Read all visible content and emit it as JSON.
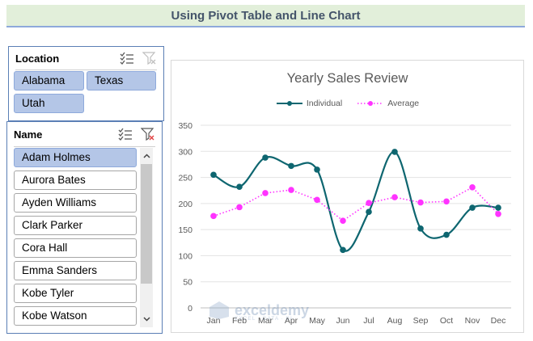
{
  "banner": {
    "title": "Using Pivot Table and Line Chart"
  },
  "location_slicer": {
    "title": "Location",
    "items": [
      {
        "label": "Alabama",
        "selected": true
      },
      {
        "label": "Texas",
        "selected": true
      },
      {
        "label": "Utah",
        "selected": true
      }
    ]
  },
  "name_slicer": {
    "title": "Name",
    "items": [
      {
        "label": "Adam Holmes",
        "selected": true
      },
      {
        "label": "Aurora Bates",
        "selected": false
      },
      {
        "label": "Ayden Williams",
        "selected": false
      },
      {
        "label": "Clark Parker",
        "selected": false
      },
      {
        "label": "Cora Hall",
        "selected": false
      },
      {
        "label": "Emma Sanders",
        "selected": false
      },
      {
        "label": "Kobe Tyler",
        "selected": false
      },
      {
        "label": "Kobe Watson",
        "selected": false
      }
    ]
  },
  "icons": {
    "multi_select": "multi-select-icon",
    "clear_filter": "clear-filter-icon",
    "scroll_up": "chevron-up-icon",
    "scroll_down": "chevron-down-icon"
  },
  "colors": {
    "individual": "#0e6670",
    "average": "#ff33ff",
    "selected_item": "#b4c6e7",
    "slicer_border": "#5b7fb5",
    "banner_bg": "#e2efda"
  },
  "watermark": {
    "text": "exceldemy",
    "subtext": "EXCEL · DATA · BI"
  },
  "chart_data": {
    "type": "line",
    "title": "Yearly Sales Review",
    "xlabel": "",
    "ylabel": "",
    "categories": [
      "Jan",
      "Feb",
      "Mar",
      "Apr",
      "May",
      "Jun",
      "Jul",
      "Aug",
      "Sep",
      "Oct",
      "Nov",
      "Dec"
    ],
    "ylim": [
      0,
      350
    ],
    "yticks": [
      0,
      50,
      100,
      150,
      200,
      250,
      300,
      350
    ],
    "grid": true,
    "legend": "top",
    "series": [
      {
        "name": "Individual",
        "style": "solid-smooth",
        "values": [
          255,
          232,
          288,
          272,
          265,
          111,
          184,
          299,
          152,
          140,
          192,
          192
        ]
      },
      {
        "name": "Average",
        "style": "dotted",
        "values": [
          176,
          193,
          220,
          226,
          207,
          167,
          201,
          212,
          202,
          204,
          231,
          180
        ]
      }
    ]
  }
}
